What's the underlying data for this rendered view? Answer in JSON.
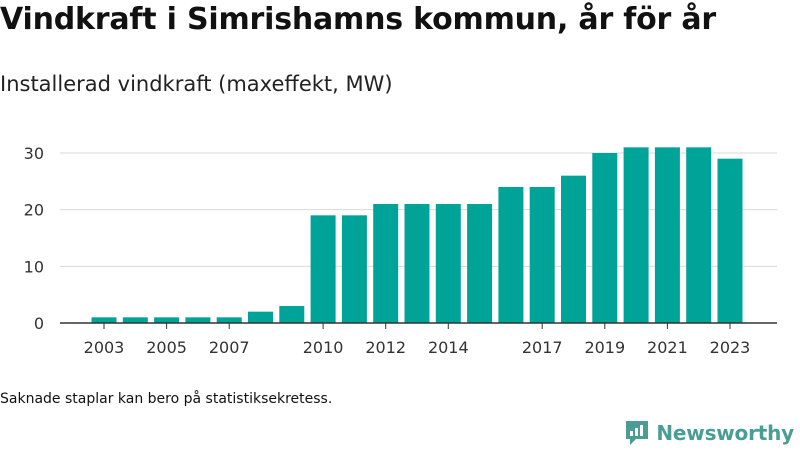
{
  "header": {
    "title": "Vindkraft i Simrishamns kommun, år för år",
    "subtitle": "Installerad vindkraft (maxeffekt, MW)"
  },
  "footnote": "Saknade staplar kan bero på statistiksekretess.",
  "brand": {
    "name": "Newsworthy",
    "icon": "newsworthy-logo-icon",
    "color": "#4a9d94"
  },
  "chart_data": {
    "type": "bar",
    "categories": [
      2003,
      2004,
      2005,
      2006,
      2007,
      2008,
      2009,
      2010,
      2011,
      2012,
      2013,
      2014,
      2015,
      2016,
      2017,
      2018,
      2019,
      2020,
      2021,
      2022,
      2023
    ],
    "values": [
      1,
      1,
      1,
      1,
      1,
      2,
      3,
      19,
      19,
      21,
      21,
      21,
      21,
      24,
      24,
      26,
      30,
      31,
      31,
      31,
      29
    ],
    "x_tick_labels": [
      "2003",
      "2005",
      "2007",
      "2010",
      "2012",
      "2014",
      "2017",
      "2019",
      "2021",
      "2023"
    ],
    "y_ticks": [
      0,
      10,
      20,
      30
    ],
    "ylim": [
      0,
      30
    ],
    "bar_color": "#00a398",
    "grid": true,
    "legend": "none"
  }
}
